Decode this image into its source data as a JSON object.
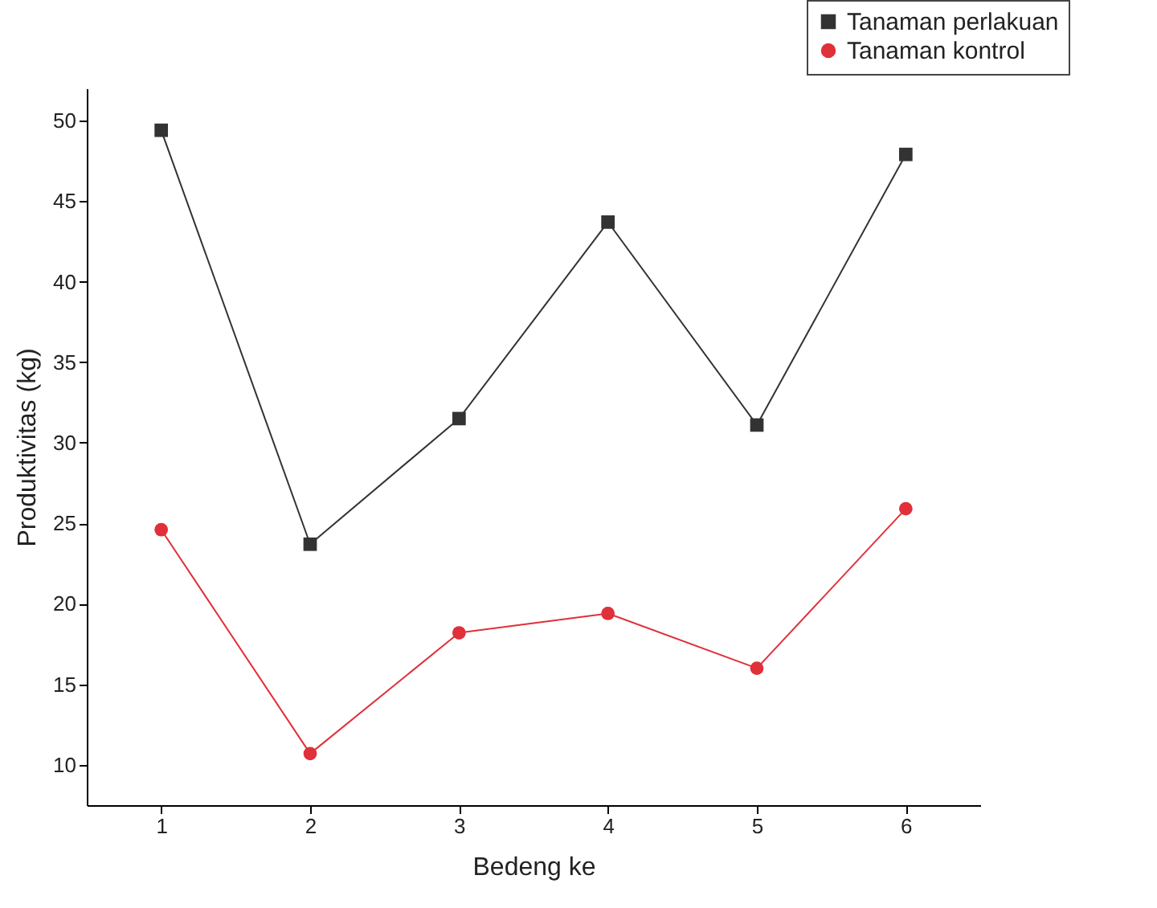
{
  "chart_data": {
    "type": "line",
    "xlabel": "Bedeng ke",
    "ylabel": "Produktivitas (kg)",
    "x": [
      1,
      2,
      3,
      4,
      5,
      6
    ],
    "xlim": [
      0.5,
      6.5
    ],
    "xticks": [
      1,
      2,
      3,
      4,
      5,
      6
    ],
    "ylim": [
      7.5,
      52
    ],
    "yticks": [
      10,
      15,
      20,
      25,
      30,
      35,
      40,
      45,
      50
    ],
    "series": [
      {
        "name": "Tanaman perlakuan",
        "color": "#333333",
        "marker": "square",
        "values": [
          49.4,
          23.7,
          31.5,
          43.7,
          31.1,
          47.9
        ]
      },
      {
        "name": "Tanaman kontrol",
        "color": "#e0303a",
        "marker": "circle",
        "values": [
          24.6,
          10.7,
          18.2,
          19.4,
          16.0,
          25.9
        ]
      }
    ],
    "grid": false,
    "legend": "top right"
  }
}
